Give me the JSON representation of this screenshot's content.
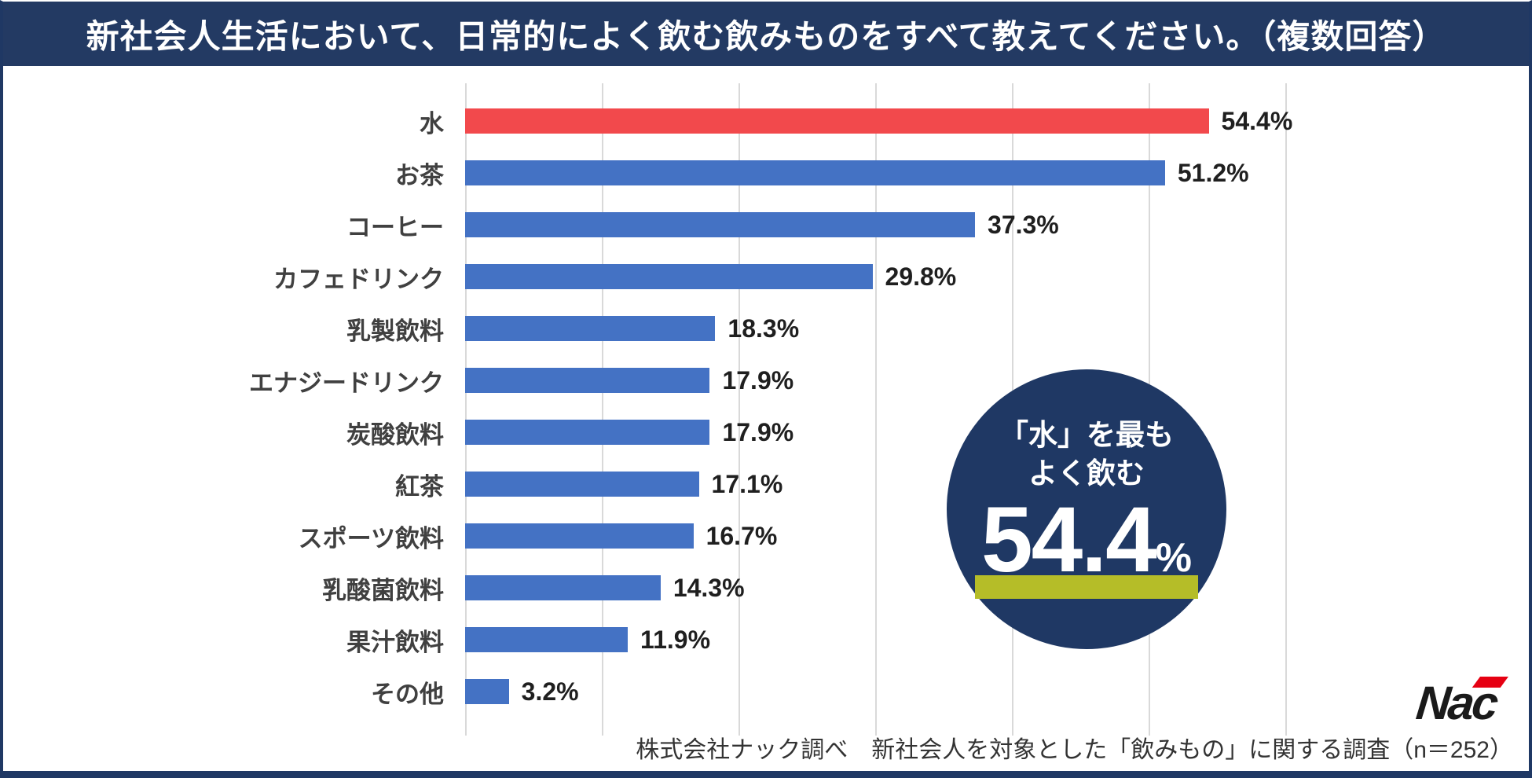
{
  "header": {
    "title": "新社会人生活において、日常的によく飲む飲みものをすべて教えてください。（複数回答）"
  },
  "chart_data": {
    "type": "bar",
    "orientation": "horizontal",
    "title": "新社会人生活において、日常的によく飲む飲みものをすべて教えてください。（複数回答）",
    "categories": [
      "水",
      "お茶",
      "コーヒー",
      "カフェドリンク",
      "乳製飲料",
      "エナジードリンク",
      "炭酸飲料",
      "紅茶",
      "スポーツ飲料",
      "乳酸菌飲料",
      "果汁飲料",
      "その他"
    ],
    "values": [
      54.4,
      51.2,
      37.3,
      29.8,
      18.3,
      17.9,
      17.9,
      17.1,
      16.7,
      14.3,
      11.9,
      3.2
    ],
    "value_suffix": "%",
    "xlim": [
      0,
      60
    ],
    "gridline_step": 10,
    "grid": true,
    "legend": "none",
    "bar_color": "#4472c4",
    "highlight_bar_color": "#f2494c",
    "highlight_index": 0
  },
  "badge": {
    "line1": "「水」を最も",
    "line2": "よく飲む",
    "value": "54.4",
    "percent_sign": "%",
    "bg_color": "#1f3864",
    "underline_color": "#b5bd28"
  },
  "footer": {
    "note": "株式会社ナック調べ　新社会人を対象とした「飲みもの」に関する調査（n＝252）"
  },
  "logo": {
    "text": "Nac",
    "accent_color": "#e60012"
  },
  "colors": {
    "header_bg": "#233a63",
    "page_border": "#1f3864",
    "gridline": "#d9d9d9",
    "category_label": "#404040",
    "value_label": "#1f1f1f"
  }
}
